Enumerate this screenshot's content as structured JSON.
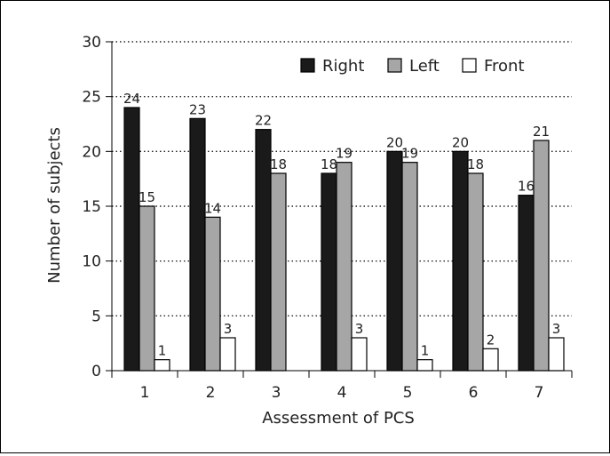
{
  "chart_data": {
    "type": "bar",
    "title": "",
    "xlabel": "Assessment of PCS",
    "ylabel": "Number of subjects",
    "ylim": [
      0,
      30
    ],
    "yticks": [
      0,
      5,
      10,
      15,
      20,
      25,
      30
    ],
    "grid": "horizontal dotted",
    "legend_position": "top-right",
    "categories": [
      "1",
      "2",
      "3",
      "4",
      "5",
      "6",
      "7"
    ],
    "series": [
      {
        "name": "Right",
        "color": "#1a1a1a",
        "values": [
          24,
          23,
          22,
          18,
          20,
          20,
          16
        ],
        "labels": [
          "24",
          "23",
          "22",
          "18",
          "20",
          "20",
          "16"
        ]
      },
      {
        "name": "Left",
        "color": "#a6a6a6",
        "values": [
          15,
          14,
          18,
          19,
          19,
          18,
          21
        ],
        "labels": [
          "15",
          "14",
          "18",
          "19",
          "19",
          "18",
          "21"
        ]
      },
      {
        "name": "Front",
        "color": "#ffffff",
        "values": [
          1,
          3,
          0,
          3,
          1,
          2,
          3
        ],
        "labels": [
          "1",
          "3",
          "",
          "3",
          "1",
          "2",
          "3"
        ]
      }
    ]
  }
}
